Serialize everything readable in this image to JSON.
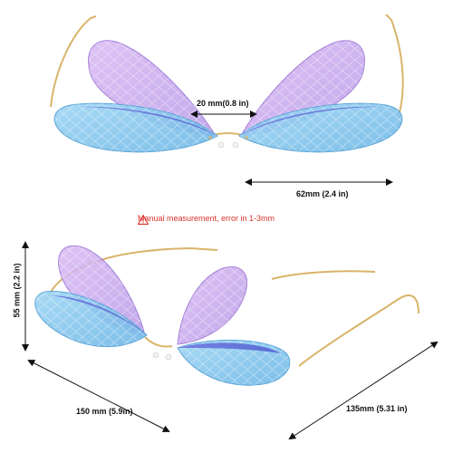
{
  "top_view": {
    "bridge_label": "20 mm(0.8 in)",
    "lens_width_label": "62mm (2.4 in)"
  },
  "note": {
    "icon": "warning-triangle-icon",
    "text": "Manual measurement, error in 1-3mm",
    "color": "#d9342b"
  },
  "bottom_view": {
    "height_label": "55 mm (2.2 in)",
    "width_label": "150 mm (5.9in)",
    "temple_label": "135mm (5.31 in)"
  },
  "colors": {
    "wing_purple": "#c8a6ec",
    "wing_blue": "#86c6ec",
    "wing_deep": "#5a62d8",
    "frame_gold": "#d9b46a"
  }
}
